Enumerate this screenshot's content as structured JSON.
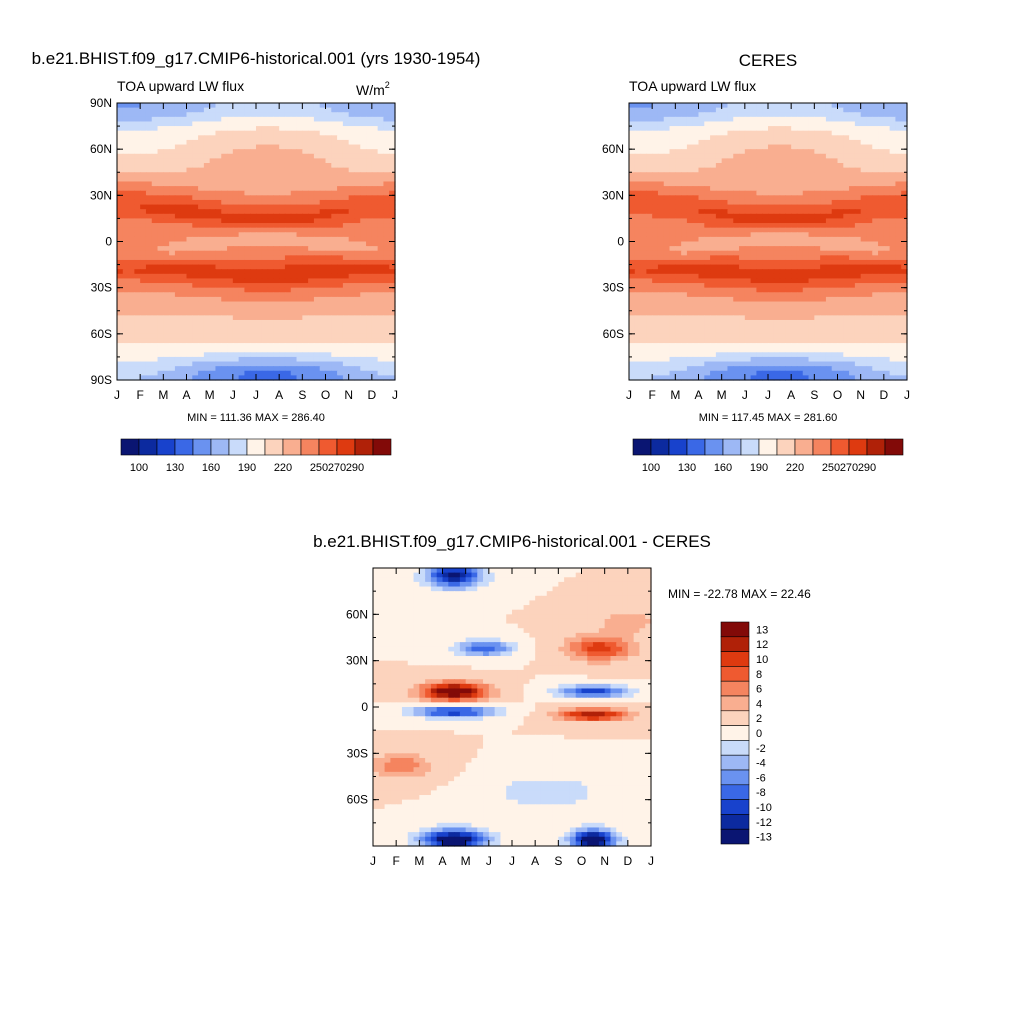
{
  "panels": {
    "model": {
      "main_title": "b.e21.BHIST.f09_g17.CMIP6-historical.001 (yrs 1930-1954)",
      "left_label": "TOA upward LW flux",
      "units_base": "W/m",
      "units_exp": "2",
      "stats": "MIN = 111.36 MAX = 286.40"
    },
    "ceres": {
      "main_title": "CERES",
      "left_label": "TOA upward LW flux",
      "stats": "MIN = 117.45 MAX = 281.60"
    },
    "diff": {
      "main_title": "b.e21.BHIST.f09_g17.CMIP6-historical.001 - CERES",
      "stats": "MIN = -22.78 MAX =  22.46"
    }
  },
  "colors": {
    "abs_palette": [
      "#0a1572",
      "#0c2a9f",
      "#1842cc",
      "#3a68e6",
      "#6a92f0",
      "#9db8f5",
      "#c9dbfa",
      "#fff3e8",
      "#fcd3bd",
      "#f9ae90",
      "#f5845f",
      "#ef5a30",
      "#de3a10",
      "#b02108",
      "#820a08"
    ],
    "diff_palette": [
      "#0a1572",
      "#0c2a9f",
      "#1842cc",
      "#3a68e6",
      "#6a92f0",
      "#9db8f5",
      "#c9dbfa",
      "#fff3e8",
      "#fcd3bd",
      "#f9ae90",
      "#f5845f",
      "#ef5a30",
      "#de3a10",
      "#b02108",
      "#820a08"
    ]
  },
  "chart_data": [
    {
      "type": "heatmap",
      "name": "model",
      "title": "TOA upward LW flux",
      "x": [
        "J",
        "F",
        "M",
        "A",
        "M",
        "J",
        "J",
        "A",
        "S",
        "O",
        "N",
        "D",
        "J"
      ],
      "y_ticks": [
        "90N",
        "60N",
        "30N",
        "0",
        "30S",
        "60S",
        "90S"
      ],
      "ylim": [
        -90,
        90
      ],
      "min": 111.36,
      "max": 286.4,
      "colorbar_labels": [
        "100",
        "130",
        "160",
        "190",
        "220",
        "250",
        "270",
        "290"
      ]
    },
    {
      "type": "heatmap",
      "name": "ceres",
      "title": "TOA upward LW flux",
      "x": [
        "J",
        "F",
        "M",
        "A",
        "M",
        "J",
        "J",
        "A",
        "S",
        "O",
        "N",
        "D",
        "J"
      ],
      "y_ticks": [
        "60N",
        "30N",
        "0",
        "30S",
        "60S"
      ],
      "ylim": [
        -90,
        90
      ],
      "min": 117.45,
      "max": 281.6,
      "colorbar_labels": [
        "100",
        "130",
        "160",
        "190",
        "220",
        "250",
        "270",
        "290"
      ]
    },
    {
      "type": "heatmap",
      "name": "difference",
      "x": [
        "J",
        "F",
        "M",
        "A",
        "M",
        "J",
        "J",
        "A",
        "S",
        "O",
        "N",
        "D",
        "J"
      ],
      "y_ticks": [
        "60N",
        "30N",
        "0",
        "30S",
        "60S"
      ],
      "ylim": [
        -90,
        90
      ],
      "min": -22.78,
      "max": 22.46,
      "colorbar_labels": [
        "13",
        "12",
        "10",
        "8",
        "6",
        "4",
        "2",
        "0",
        "-2",
        "-4",
        "-6",
        "-8",
        "-10",
        "-12",
        "-13"
      ]
    }
  ]
}
